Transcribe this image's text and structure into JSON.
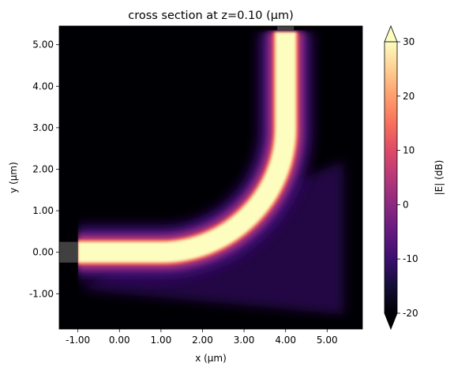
{
  "chart_data": {
    "type": "heatmap",
    "title": "cross section at z=0.10 (μm)",
    "xlabel": "x (μm)",
    "ylabel": "y (μm)",
    "xlim": [
      -1.45,
      5.85
    ],
    "ylim": [
      -1.85,
      5.45
    ],
    "xticks": [
      "-1.00",
      "0.00",
      "1.00",
      "2.00",
      "3.00",
      "4.00",
      "5.00"
    ],
    "xtick_values": [
      -1,
      0,
      1,
      2,
      3,
      4,
      5
    ],
    "yticks": [
      "-1.00",
      "0.00",
      "1.00",
      "2.00",
      "3.00",
      "4.00",
      "5.00"
    ],
    "ytick_values": [
      -1,
      0,
      1,
      2,
      3,
      4,
      5
    ],
    "colorbar": {
      "label": "|E| (dB)",
      "range": [
        -20,
        30
      ],
      "ticks": [
        "-20",
        "-10",
        "0",
        "10",
        "20",
        "30"
      ],
      "tick_values": [
        -20,
        -10,
        0,
        10,
        20,
        30
      ],
      "colormap": "magma",
      "extend": "both"
    },
    "field": {
      "description_values": "bent waveguide: straight section along y=0 from x=-1 to ~1, 90° bend of radius ~3 µm centered at (1, 3), straight section along x=4 up to y=5.3",
      "straight_in": {
        "y": 0.0,
        "x_from": -1.0,
        "x_to": 1.0
      },
      "bend": {
        "center_x": 1.0,
        "center_y": 3.0,
        "radius": 3.0
      },
      "straight_out": {
        "x": 4.0,
        "y_from": 3.0,
        "y_to": 5.3
      },
      "core_value_db": 30,
      "background_value_db": -20,
      "sim_domain": {
        "x_from": -1.0,
        "x_to": 5.4,
        "y_from": -1.6,
        "y_to": 5.35
      }
    }
  }
}
